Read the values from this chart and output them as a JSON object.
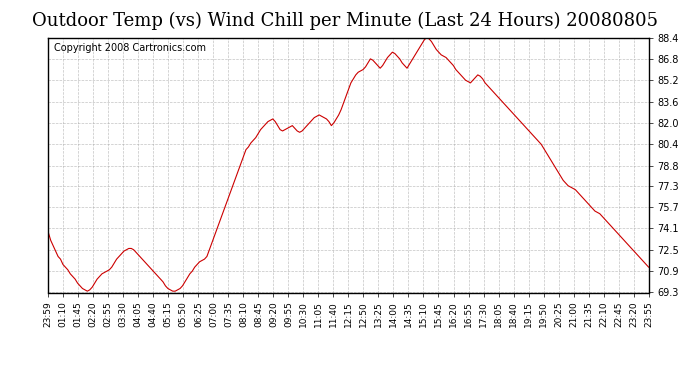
{
  "title": "Outdoor Temp (vs) Wind Chill per Minute (Last 24 Hours) 20080805",
  "copyright": "Copyright 2008 Cartronics.com",
  "ylim": [
    69.3,
    88.4
  ],
  "yticks": [
    69.3,
    70.9,
    72.5,
    74.1,
    75.7,
    77.3,
    78.8,
    80.4,
    82.0,
    83.6,
    85.2,
    86.8,
    88.4
  ],
  "line_color": "#cc0000",
  "bg_color": "#ffffff",
  "grid_color": "#aaaaaa",
  "title_fontsize": 13,
  "copyright_fontsize": 7,
  "xtick_labels": [
    "23:59",
    "01:10",
    "01:45",
    "02:20",
    "02:55",
    "03:30",
    "04:05",
    "04:40",
    "05:15",
    "05:50",
    "06:25",
    "07:00",
    "07:35",
    "08:10",
    "08:45",
    "09:20",
    "09:55",
    "10:30",
    "11:05",
    "11:40",
    "12:15",
    "12:50",
    "13:25",
    "14:00",
    "14:35",
    "15:10",
    "15:45",
    "16:20",
    "16:55",
    "17:30",
    "18:05",
    "18:40",
    "19:15",
    "19:50",
    "20:25",
    "21:00",
    "21:35",
    "22:10",
    "22:45",
    "23:20",
    "23:55"
  ],
  "data_y": [
    73.8,
    73.2,
    72.8,
    72.4,
    72.0,
    71.8,
    71.4,
    71.2,
    71.0,
    70.7,
    70.5,
    70.3,
    70.0,
    69.8,
    69.6,
    69.5,
    69.4,
    69.5,
    69.7,
    70.0,
    70.3,
    70.5,
    70.7,
    70.8,
    70.9,
    71.0,
    71.2,
    71.5,
    71.8,
    72.0,
    72.2,
    72.4,
    72.5,
    72.6,
    72.6,
    72.5,
    72.3,
    72.1,
    71.9,
    71.7,
    71.5,
    71.3,
    71.1,
    70.9,
    70.7,
    70.5,
    70.3,
    70.1,
    69.8,
    69.6,
    69.5,
    69.4,
    69.4,
    69.5,
    69.6,
    69.8,
    70.1,
    70.4,
    70.7,
    70.9,
    71.2,
    71.4,
    71.6,
    71.7,
    71.8,
    72.0,
    72.5,
    73.0,
    73.5,
    74.0,
    74.5,
    75.0,
    75.5,
    76.0,
    76.5,
    77.0,
    77.5,
    78.0,
    78.5,
    79.0,
    79.5,
    80.0,
    80.2,
    80.5,
    80.7,
    80.9,
    81.2,
    81.5,
    81.7,
    81.9,
    82.1,
    82.2,
    82.3,
    82.1,
    81.8,
    81.5,
    81.4,
    81.5,
    81.6,
    81.7,
    81.8,
    81.6,
    81.4,
    81.3,
    81.4,
    81.6,
    81.8,
    82.0,
    82.2,
    82.4,
    82.5,
    82.6,
    82.5,
    82.4,
    82.3,
    82.1,
    81.8,
    82.0,
    82.3,
    82.6,
    83.0,
    83.5,
    84.0,
    84.5,
    85.0,
    85.3,
    85.6,
    85.8,
    85.9,
    86.0,
    86.2,
    86.5,
    86.8,
    86.7,
    86.5,
    86.3,
    86.1,
    86.3,
    86.6,
    86.9,
    87.1,
    87.3,
    87.2,
    87.0,
    86.8,
    86.5,
    86.3,
    86.1,
    86.4,
    86.7,
    87.0,
    87.3,
    87.6,
    87.9,
    88.2,
    88.4,
    88.3,
    88.1,
    87.8,
    87.5,
    87.3,
    87.1,
    87.0,
    86.9,
    86.7,
    86.5,
    86.3,
    86.0,
    85.8,
    85.6,
    85.4,
    85.2,
    85.1,
    85.0,
    85.2,
    85.4,
    85.6,
    85.5,
    85.3,
    85.0,
    84.8,
    84.6,
    84.4,
    84.2,
    84.0,
    83.8,
    83.6,
    83.4,
    83.2,
    83.0,
    82.8,
    82.6,
    82.4,
    82.2,
    82.0,
    81.8,
    81.6,
    81.4,
    81.2,
    81.0,
    80.8,
    80.6,
    80.4,
    80.1,
    79.8,
    79.5,
    79.2,
    78.9,
    78.6,
    78.3,
    78.0,
    77.7,
    77.5,
    77.3,
    77.2,
    77.1,
    77.0,
    76.8,
    76.6,
    76.4,
    76.2,
    76.0,
    75.8,
    75.6,
    75.4,
    75.3,
    75.2,
    75.0,
    74.8,
    74.6,
    74.4,
    74.2,
    74.0,
    73.8,
    73.6,
    73.4,
    73.2,
    73.0,
    72.8,
    72.6,
    72.4,
    72.2,
    72.0,
    71.8,
    71.6,
    71.4,
    71.2
  ]
}
